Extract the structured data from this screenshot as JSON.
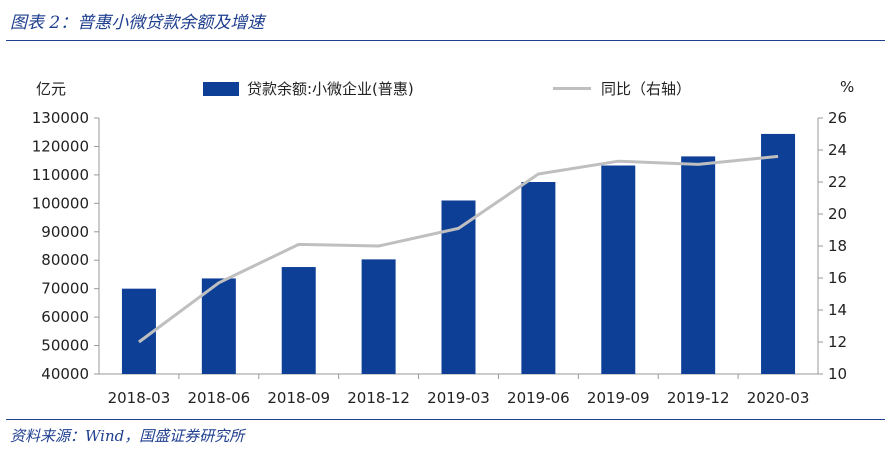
{
  "header": {
    "title": "图表 2：普惠小微贷款余额及增速"
  },
  "footer": {
    "source": "资料来源：Wind，国盛证券研究所"
  },
  "chart_data": {
    "type": "bar",
    "left_unit": "亿元",
    "right_unit": "%",
    "categories": [
      "2018-03",
      "2018-06",
      "2018-09",
      "2018-12",
      "2019-03",
      "2019-06",
      "2019-09",
      "2019-12",
      "2020-03"
    ],
    "series": [
      {
        "name": "贷款余额:小微企业(普惠)",
        "type": "bar",
        "axis": "left",
        "values": [
          70000,
          73600,
          77600,
          80300,
          101000,
          107500,
          113300,
          116500,
          124400
        ]
      },
      {
        "name": "同比（右轴）",
        "type": "line",
        "axis": "right",
        "values": [
          12.0,
          15.7,
          18.1,
          18.0,
          19.1,
          22.5,
          23.3,
          23.1,
          23.6
        ]
      }
    ],
    "left_ylim": [
      40000,
      130000
    ],
    "left_ticks": [
      "40000",
      "50000",
      "60000",
      "70000",
      "80000",
      "90000",
      "100000",
      "110000",
      "120000",
      "130000"
    ],
    "right_ylim": [
      10,
      26
    ],
    "right_ticks": [
      "10",
      "12",
      "14",
      "16",
      "18",
      "20",
      "22",
      "24",
      "26"
    ],
    "colors": {
      "bar": "#0d3f97",
      "line": "#bfbfbf",
      "title": "#1f3f8f"
    },
    "legend_position": "top"
  }
}
